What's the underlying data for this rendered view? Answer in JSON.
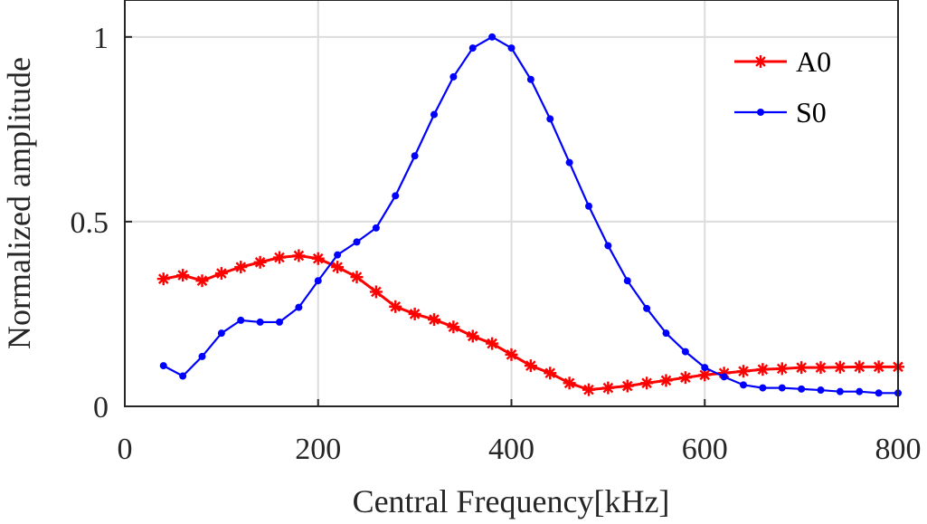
{
  "chart_data": {
    "type": "line",
    "title": "",
    "xlabel": "Central Frequency[kHz]",
    "ylabel": "Normalized amplitude",
    "xlim": [
      0,
      800
    ],
    "ylim": [
      0,
      1.1
    ],
    "xticks": [
      0,
      200,
      400,
      600,
      800
    ],
    "xtick_labels": [
      "0",
      "200",
      "400",
      "600",
      "800"
    ],
    "yticks": [
      0,
      0.5,
      1
    ],
    "ytick_labels": [
      "0",
      "0.5",
      "1"
    ],
    "grid": true,
    "legend_position": "top-right",
    "series": [
      {
        "name": "A0",
        "color": "#ff0000",
        "marker": "asterisk",
        "x": [
          40,
          60,
          80,
          100,
          120,
          140,
          160,
          180,
          200,
          220,
          240,
          260,
          280,
          300,
          320,
          340,
          360,
          380,
          400,
          420,
          440,
          460,
          480,
          500,
          520,
          540,
          560,
          580,
          600,
          620,
          640,
          660,
          680,
          700,
          720,
          740,
          760,
          780,
          800
        ],
        "y": [
          0.345,
          0.355,
          0.34,
          0.36,
          0.377,
          0.39,
          0.403,
          0.408,
          0.4,
          0.377,
          0.35,
          0.31,
          0.27,
          0.25,
          0.235,
          0.215,
          0.19,
          0.17,
          0.14,
          0.11,
          0.09,
          0.063,
          0.045,
          0.05,
          0.055,
          0.063,
          0.07,
          0.078,
          0.085,
          0.09,
          0.095,
          0.1,
          0.102,
          0.105,
          0.105,
          0.106,
          0.107,
          0.107,
          0.107
        ]
      },
      {
        "name": "S0",
        "color": "#0000ff",
        "marker": "dot",
        "x": [
          40,
          60,
          80,
          100,
          120,
          140,
          160,
          180,
          200,
          220,
          240,
          260,
          280,
          300,
          320,
          340,
          360,
          380,
          400,
          420,
          440,
          460,
          480,
          500,
          520,
          540,
          560,
          580,
          600,
          620,
          640,
          660,
          680,
          700,
          720,
          740,
          760,
          780,
          800
        ],
        "y": [
          0.11,
          0.082,
          0.135,
          0.198,
          0.233,
          0.228,
          0.228,
          0.268,
          0.34,
          0.41,
          0.445,
          0.483,
          0.57,
          0.678,
          0.79,
          0.892,
          0.97,
          1.0,
          0.97,
          0.885,
          0.778,
          0.66,
          0.542,
          0.435,
          0.34,
          0.265,
          0.198,
          0.148,
          0.105,
          0.08,
          0.058,
          0.05,
          0.05,
          0.047,
          0.044,
          0.04,
          0.04,
          0.036,
          0.036
        ]
      }
    ]
  }
}
